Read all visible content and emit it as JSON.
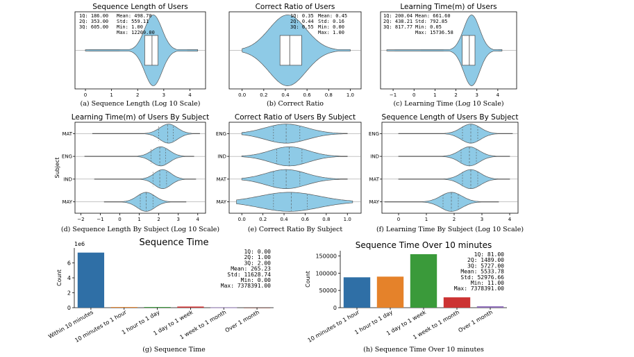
{
  "colors": {
    "violin_fill": "#8ecae6",
    "violin_stroke": "#555555",
    "bar_blue": "#2f6fa6",
    "bar_orange": "#e5822a",
    "bar_green": "#3a9a3a",
    "bar_red": "#cc3333",
    "bar_purple": "#8c6bb8"
  },
  "chart_data": [
    {
      "id": "a",
      "type": "violin",
      "title": "Sequence Length of Users",
      "caption": "(a) Sequence Length (Log 10 Scale)",
      "xlim": [
        -0.4,
        4.6
      ],
      "xticks": [
        0,
        1,
        2,
        3,
        4
      ],
      "tick_labels": [
        "0",
        "1",
        "2",
        "3",
        "4"
      ],
      "violin": {
        "median": 2.55,
        "q1": 2.27,
        "q3": 2.78,
        "min": 0.0,
        "max": 4.3,
        "peak": 2.6,
        "spread": 0.33
      },
      "stats_col1": [
        "1Q: 186.00",
        "2Q: 353.00",
        "3Q: 605.00"
      ],
      "stats_col2": [
        "Mean: 498.70",
        "Std: 559.11",
        "Min: 1.00",
        "Max: 12209.00"
      ]
    },
    {
      "id": "b",
      "type": "violin",
      "title": "Correct Ratio of Users",
      "caption": "(b) Correct Ratio",
      "xlim": [
        -0.12,
        1.1
      ],
      "xticks": [
        0.0,
        0.2,
        0.4,
        0.6,
        0.8,
        1.0
      ],
      "tick_labels": [
        "0.0",
        "0.2",
        "0.4",
        "0.6",
        "0.8",
        "1.0"
      ],
      "violin": {
        "median": 0.44,
        "q1": 0.35,
        "q3": 0.55,
        "min": 0.0,
        "max": 1.0,
        "peak": 0.42,
        "spread": 0.17
      },
      "stats_col1": [
        "1Q: 0.35",
        "2Q: 0.44",
        "3Q: 0.55"
      ],
      "stats_col2": [
        "Mean: 0.45",
        "Std: 0.16",
        "Min: 0.00",
        "Max: 1.00"
      ]
    },
    {
      "id": "c",
      "type": "violin",
      "title": "Learning Time(m) of Users",
      "caption": "(c) Learning Time (Log 10 Scale)",
      "xlim": [
        -1.6,
        4.9
      ],
      "xticks": [
        -1,
        0,
        1,
        2,
        3,
        4
      ],
      "tick_labels": [
        "−1",
        "0",
        "1",
        "2",
        "3",
        "4"
      ],
      "violin": {
        "median": 2.64,
        "q1": 2.3,
        "q3": 2.91,
        "min": -1.3,
        "max": 4.2,
        "peak": 2.75,
        "spread": 0.38
      },
      "stats_col1": [
        "1Q: 200.04",
        "2Q: 438.21",
        "3Q: 817.77"
      ],
      "stats_col2": [
        "Mean: 661.60",
        "Std: 792.85",
        "Min: 0.05",
        "Max: 15736.58"
      ]
    },
    {
      "id": "d",
      "type": "violin-grouped",
      "title": "Learning Time(m) of Users By Subject",
      "caption": "(d) Sequence Length By Subject (Log 10 Scale)",
      "ylabel": "Subject",
      "xlim": [
        -2.3,
        4.4
      ],
      "xticks": [
        -2,
        -1,
        0,
        1,
        2,
        3,
        4
      ],
      "tick_labels": [
        "−2",
        "−1",
        "0",
        "1",
        "2",
        "3",
        "4"
      ],
      "categories": [
        "MAT",
        "ENG",
        "IND",
        "MAY"
      ],
      "violins": [
        {
          "median": 2.45,
          "q1": 2.0,
          "q3": 2.75,
          "min": -1.4,
          "max": 4.1,
          "peak": 2.5,
          "spread": 0.45
        },
        {
          "median": 2.05,
          "q1": 1.6,
          "q3": 2.35,
          "min": -1.8,
          "max": 3.8,
          "peak": 2.1,
          "spread": 0.45
        },
        {
          "median": 2.05,
          "q1": 1.7,
          "q3": 2.4,
          "min": -1.3,
          "max": 3.9,
          "peak": 2.2,
          "spread": 0.42
        },
        {
          "median": 1.35,
          "q1": 1.05,
          "q3": 1.7,
          "min": -0.8,
          "max": 3.4,
          "peak": 1.35,
          "spread": 0.45
        }
      ]
    },
    {
      "id": "e",
      "type": "violin-grouped",
      "title": "Correct Ratio of Users By Subject",
      "caption": "(e) Correct Ratio By Subject",
      "xlim": [
        -0.12,
        1.13
      ],
      "xticks": [
        0.0,
        0.2,
        0.4,
        0.6,
        0.8,
        1.0
      ],
      "tick_labels": [
        "0.0",
        "0.2",
        "0.4",
        "0.6",
        "0.8",
        "1.0"
      ],
      "categories": [
        "ENG",
        "IND",
        "MAT",
        "MAY"
      ],
      "violins": [
        {
          "median": 0.42,
          "q1": 0.3,
          "q3": 0.55,
          "min": 0.0,
          "max": 1.0,
          "peak": 0.42,
          "spread": 0.2
        },
        {
          "median": 0.45,
          "q1": 0.33,
          "q3": 0.57,
          "min": 0.0,
          "max": 1.0,
          "peak": 0.45,
          "spread": 0.18
        },
        {
          "median": 0.42,
          "q1": 0.3,
          "q3": 0.55,
          "min": 0.0,
          "max": 1.0,
          "peak": 0.42,
          "spread": 0.19
        },
        {
          "median": 0.47,
          "q1": 0.3,
          "q3": 0.62,
          "min": -0.05,
          "max": 1.05,
          "peak": 0.45,
          "spread": 0.28
        }
      ]
    },
    {
      "id": "f",
      "type": "violin-grouped",
      "title": "Sequence Length of Users By Subject",
      "caption": "(f) Learning Time By Subject (Log 10 Scale)",
      "xlim": [
        -0.6,
        4.3
      ],
      "xticks": [
        0,
        1,
        2,
        3,
        4
      ],
      "tick_labels": [
        "0",
        "1",
        "2",
        "3",
        "4"
      ],
      "categories": [
        "ENG",
        "IND",
        "MAT",
        "MAY"
      ],
      "violins": [
        {
          "median": 2.6,
          "q1": 2.3,
          "q3": 2.85,
          "min": 0.0,
          "max": 4.1,
          "peak": 2.6,
          "spread": 0.35
        },
        {
          "median": 2.55,
          "q1": 2.25,
          "q3": 2.8,
          "min": 0.0,
          "max": 4.0,
          "peak": 2.55,
          "spread": 0.35
        },
        {
          "median": 2.6,
          "q1": 2.3,
          "q3": 2.85,
          "min": 0.0,
          "max": 4.0,
          "peak": 2.6,
          "spread": 0.35
        },
        {
          "median": 1.9,
          "q1": 1.6,
          "q3": 2.15,
          "min": -0.5,
          "max": 3.6,
          "peak": 1.9,
          "spread": 0.38
        }
      ]
    },
    {
      "id": "g",
      "type": "bar",
      "title": "Sequence Time",
      "caption": "(g) Sequence Time",
      "ylabel": "Count",
      "offset_label": "1e6",
      "ylim": [
        0,
        8000000
      ],
      "yticks": [
        0,
        2000000,
        4000000,
        6000000
      ],
      "ytick_labels": [
        "0",
        "2",
        "4",
        "6"
      ],
      "categories": [
        "Within 10 minutes",
        "10 minutes to 1 hour",
        "1 hour to 1 day",
        "1 day to 1 week",
        "1 week to 1 month",
        "Over 1 month"
      ],
      "values": [
        7378391,
        90000,
        92000,
        150000,
        30000,
        5000
      ],
      "bar_colors": [
        "#2f6fa6",
        "#e5822a",
        "#3a9a3a",
        "#cc3333",
        "#8c6bb8",
        "#8c564b"
      ],
      "stats": [
        "1Q: 0.00",
        "2Q: 1.00",
        "3Q: 2.00",
        "Mean: 265.23",
        "Std: 11628.74",
        "Min: 0.00",
        "Max: 7378391.00"
      ]
    },
    {
      "id": "h",
      "type": "bar",
      "title": "Sequence Time Over 10 minutes",
      "caption": "(h) Sequence Time Over 10 minutes",
      "ylabel": "Count",
      "ylim": [
        0,
        165000
      ],
      "yticks": [
        0,
        50000,
        100000,
        150000
      ],
      "ytick_labels": [
        "0",
        "50000",
        "100000",
        "150000"
      ],
      "categories": [
        "10 minutes to 1 hour",
        "1 hour to 1 day",
        "1 day to 1 week",
        "1 week to 1 month",
        "Over 1 month"
      ],
      "values": [
        88000,
        90000,
        155000,
        30000,
        4000
      ],
      "bar_colors": [
        "#2f6fa6",
        "#e5822a",
        "#3a9a3a",
        "#cc3333",
        "#8c6bb8"
      ],
      "stats": [
        "1Q: 81.00",
        "2Q: 1489.00",
        "3Q: 5727.00",
        "Mean: 5533.78",
        "Std: 52976.66",
        "Min: 11.00",
        "Max: 7378391.00"
      ]
    }
  ]
}
